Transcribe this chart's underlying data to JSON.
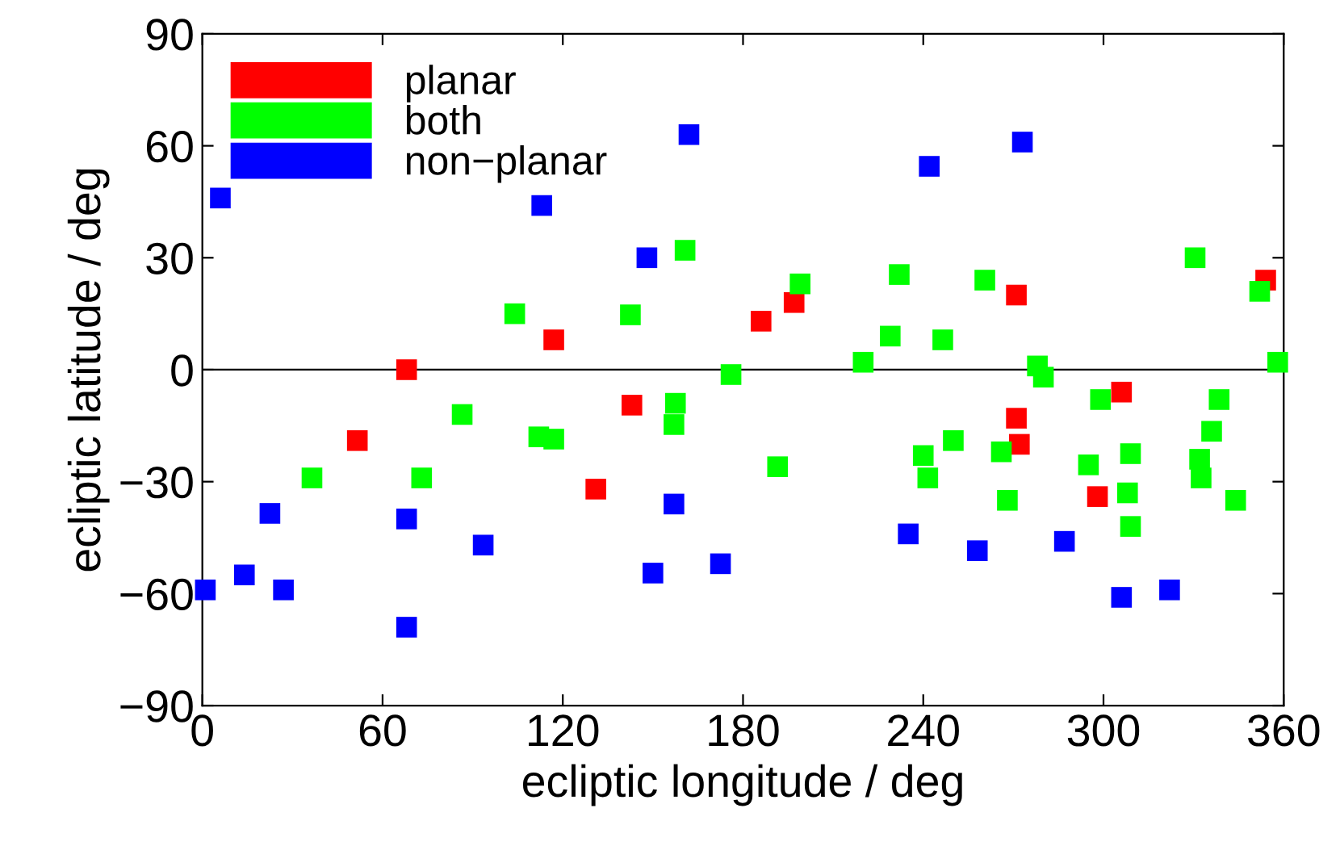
{
  "chart_data": {
    "type": "scatter",
    "xlabel": "ecliptic longitude / deg",
    "ylabel": "ecliptic latitude / deg",
    "xlim": [
      0,
      360
    ],
    "ylim": [
      -90,
      90
    ],
    "xticks": [
      0,
      60,
      120,
      180,
      240,
      300,
      360
    ],
    "yticks": [
      {
        "value": -90,
        "label": "−90"
      },
      {
        "value": -60,
        "label": "−60"
      },
      {
        "value": -30,
        "label": "−30"
      },
      0,
      30,
      60,
      90
    ],
    "grid": false,
    "legend": "top left",
    "marker": "square",
    "ref_lines": [
      {
        "axis": "y",
        "value": 0,
        "color": "#000000"
      }
    ],
    "series": [
      {
        "name": "planar",
        "color": "#ff0000",
        "x": [
          68,
          51.6,
          117,
          131,
          143,
          186,
          197,
          271,
          271,
          272,
          306,
          298,
          354
        ],
        "values": [
          0,
          -19,
          8,
          -32,
          -9.5,
          13,
          18,
          20,
          -13,
          -20,
          -6,
          -34,
          24
        ]
      },
      {
        "name": "both",
        "color": "#00ff00",
        "x": [
          36.5,
          73,
          86.5,
          104,
          112,
          117,
          142.5,
          160.7,
          157,
          157.5,
          176,
          191.5,
          199,
          220,
          229,
          232,
          246.5,
          250,
          240,
          241.5,
          260.5,
          266,
          268,
          278,
          280,
          299,
          295,
          309,
          308,
          309,
          330.5,
          332,
          332.5,
          336,
          338.5,
          344,
          352,
          358
        ],
        "values": [
          -29,
          -29,
          -12,
          15,
          -18,
          -18.6,
          14.7,
          32,
          -14.7,
          -9,
          -1.3,
          -26,
          23,
          2,
          9,
          25.5,
          8,
          -19,
          -23,
          -29,
          24,
          -22,
          -35,
          1,
          -2,
          -8,
          -25.5,
          -22.5,
          -33,
          -42,
          30,
          -24,
          -29,
          -16.5,
          -8,
          -35,
          21,
          2
        ]
      },
      {
        "name": "non−planar",
        "color": "#0000ff",
        "x": [
          1,
          6,
          14,
          22.5,
          27,
          68,
          68,
          93.5,
          113,
          148,
          150,
          162,
          157,
          172.5,
          235,
          242,
          258,
          273,
          287,
          306,
          322
        ],
        "values": [
          -59,
          46,
          -55,
          -38.5,
          -59,
          -40,
          -69,
          -47,
          44,
          30,
          -54.5,
          63,
          -36,
          -52,
          -44,
          54.5,
          -48.5,
          61,
          -46,
          -61,
          -59
        ]
      }
    ]
  }
}
